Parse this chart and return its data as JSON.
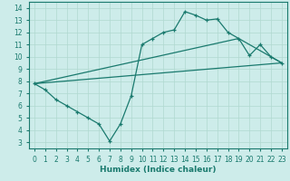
{
  "xlabel": "Humidex (Indice chaleur)",
  "xlim": [
    -0.5,
    23.5
  ],
  "ylim": [
    2.5,
    14.5
  ],
  "xticks": [
    0,
    1,
    2,
    3,
    4,
    5,
    6,
    7,
    8,
    9,
    10,
    11,
    12,
    13,
    14,
    15,
    16,
    17,
    18,
    19,
    20,
    21,
    22,
    23
  ],
  "yticks": [
    3,
    4,
    5,
    6,
    7,
    8,
    9,
    10,
    11,
    12,
    13,
    14
  ],
  "bg_color": "#cdecea",
  "grid_color": "#b0d8d0",
  "line_color": "#1a7a6e",
  "main_line_x": [
    0,
    1,
    2,
    3,
    4,
    5,
    6,
    7,
    8,
    9,
    10,
    11,
    12,
    13,
    14,
    15,
    16,
    17,
    18,
    19,
    20,
    21,
    22,
    23
  ],
  "main_line_y": [
    7.8,
    7.3,
    6.5,
    6.0,
    5.5,
    5.0,
    4.5,
    3.1,
    4.5,
    6.8,
    11.0,
    11.5,
    12.0,
    12.2,
    13.7,
    13.4,
    13.0,
    13.1,
    12.0,
    11.5,
    10.1,
    11.0,
    10.0,
    9.5
  ],
  "line2_x": [
    0,
    23
  ],
  "line2_y": [
    7.8,
    9.5
  ],
  "line3_x": [
    0,
    19,
    23
  ],
  "line3_y": [
    7.8,
    11.5,
    9.5
  ]
}
